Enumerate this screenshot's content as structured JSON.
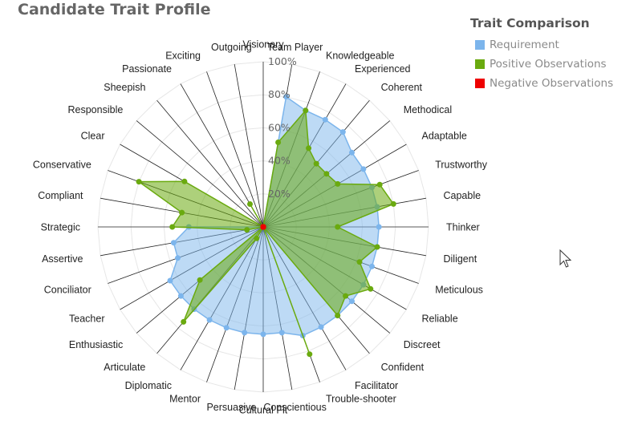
{
  "title": "Candidate Trait Profile",
  "legend": {
    "title": "Trait Comparison",
    "items": [
      {
        "label": "Requirement",
        "color": "#7cb5ec"
      },
      {
        "label": "Positive Observations",
        "color": "#6aaa0f"
      },
      {
        "label": "Negative Observations",
        "color": "#ee0000"
      }
    ]
  },
  "chart_data": {
    "type": "radar",
    "title": "Candidate Trait Profile",
    "categories": [
      "Visionary",
      "Team Player",
      "Knowledgeable",
      "Experienced",
      "Coherent",
      "Methodical",
      "Adaptable",
      "Trustworthy",
      "Capable",
      "Thinker",
      "Diligent",
      "Meticulous",
      "Reliable",
      "Discreet",
      "Confident",
      "Facilitator",
      "Trouble-shooter",
      "Conscientious",
      "Cultural Fit",
      "Persuasive",
      "Mentor",
      "Diplomatic",
      "Articulate",
      "Enthusiastic",
      "Teacher",
      "Conciliator",
      "Assertive",
      "Strategic",
      "Compliant",
      "Conservative",
      "Clear",
      "Responsible",
      "Sheepish",
      "Passionate",
      "Exciting",
      "Outgoing"
    ],
    "radial_ticks": [
      "20%",
      "40%",
      "60%",
      "80%",
      "100%"
    ],
    "ylim": [
      0,
      100
    ],
    "series": [
      {
        "name": "Requirement",
        "color": "#7cb5ec",
        "values": [
          0,
          80,
          75,
          75,
          75,
          70,
          70,
          70,
          70,
          70,
          70,
          70,
          70,
          70,
          70,
          70,
          70,
          65,
          65,
          65,
          65,
          65,
          65,
          65,
          65,
          55,
          55,
          45,
          0,
          0,
          0,
          0,
          0,
          0,
          0,
          0
        ]
      },
      {
        "name": "Positive Observations",
        "color": "#6aaa0f",
        "values": [
          0,
          52,
          75,
          55,
          50,
          50,
          52,
          75,
          80,
          45,
          70,
          62,
          75,
          65,
          70,
          0,
          82,
          0,
          0,
          0,
          0,
          8,
          75,
          50,
          0,
          0,
          10,
          55,
          50,
          80,
          55,
          0,
          0,
          16,
          0,
          0
        ]
      },
      {
        "name": "Negative Observations",
        "color": "#ee0000",
        "values": [
          0,
          0,
          0,
          0,
          0,
          0,
          0,
          0,
          0,
          0,
          0,
          0,
          0,
          0,
          0,
          0,
          0,
          0,
          0,
          0,
          0,
          0,
          0,
          0,
          0,
          0,
          0,
          0,
          0,
          0,
          0,
          0,
          0,
          0,
          0,
          0
        ]
      }
    ]
  }
}
